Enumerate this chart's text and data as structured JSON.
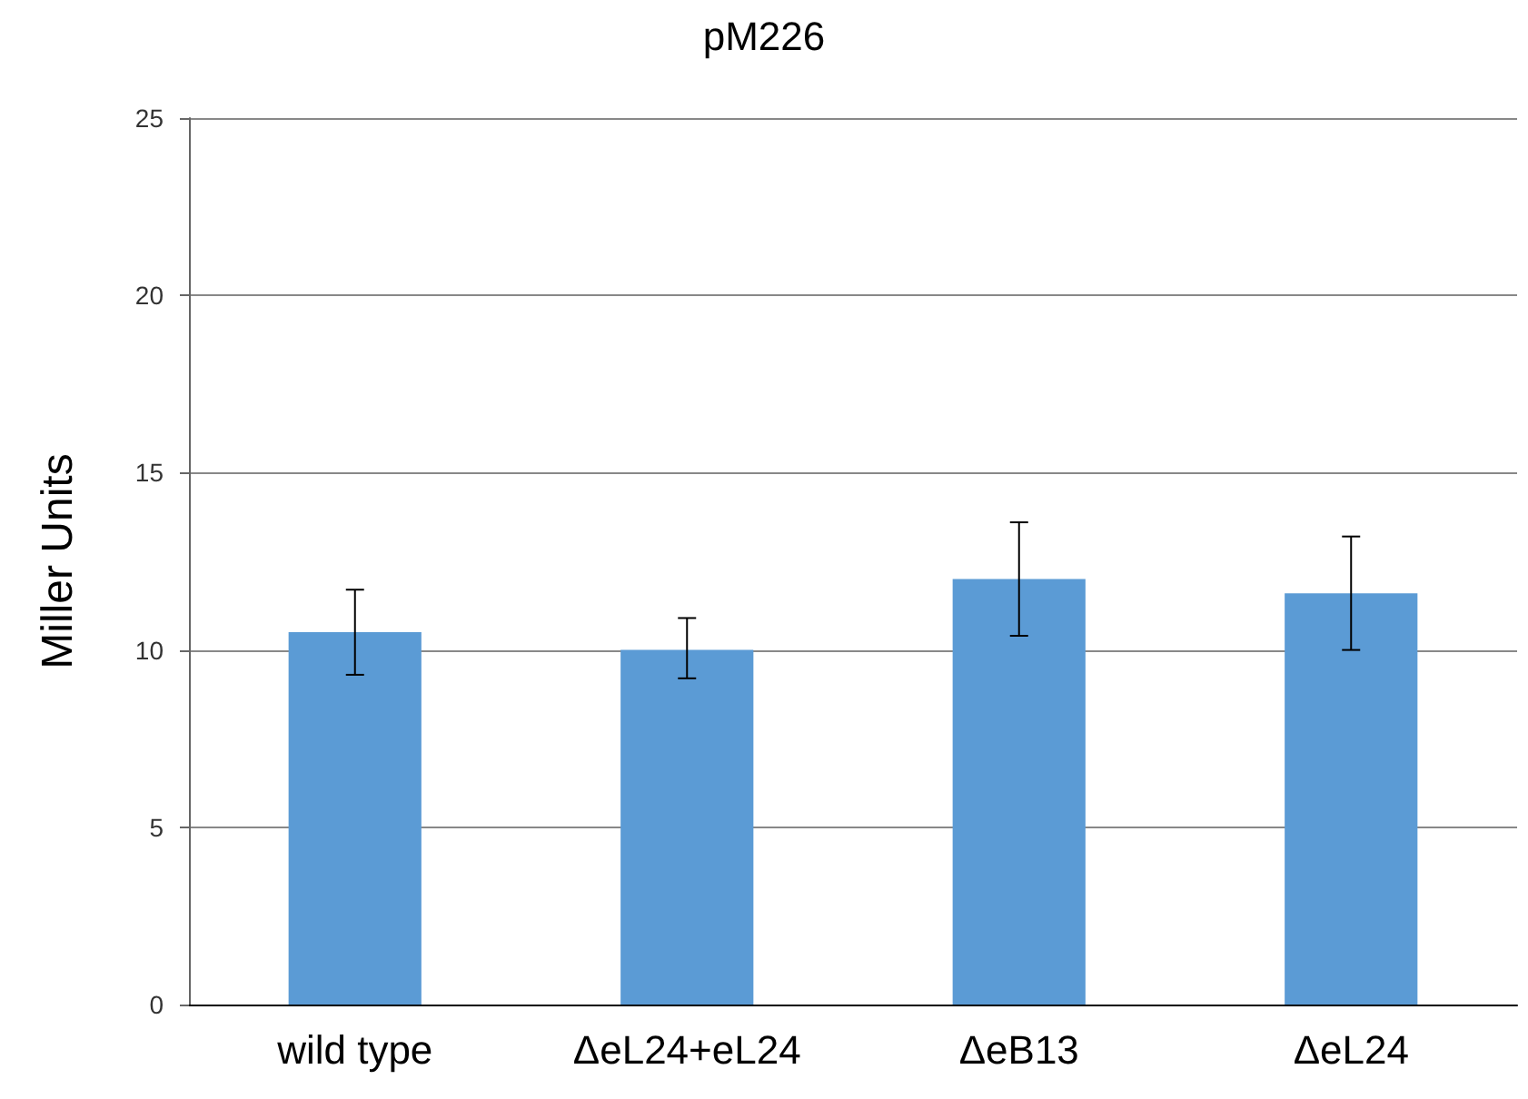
{
  "chart_data": {
    "type": "bar",
    "title": "pM226",
    "ylabel": "Miller Units",
    "categories": [
      "wild type",
      "ΔeL24+eL24",
      "ΔeB13",
      "ΔeL24"
    ],
    "values": [
      10.5,
      10.0,
      12.0,
      11.6
    ],
    "errors": [
      1.2,
      [
        9.2,
        10.9
      ],
      1.6,
      1.6
    ],
    "color": "#5b9bd5",
    "ylim": [
      0,
      25
    ],
    "yticks": [
      0,
      5,
      10,
      15,
      20,
      25
    ],
    "grid": "y"
  }
}
